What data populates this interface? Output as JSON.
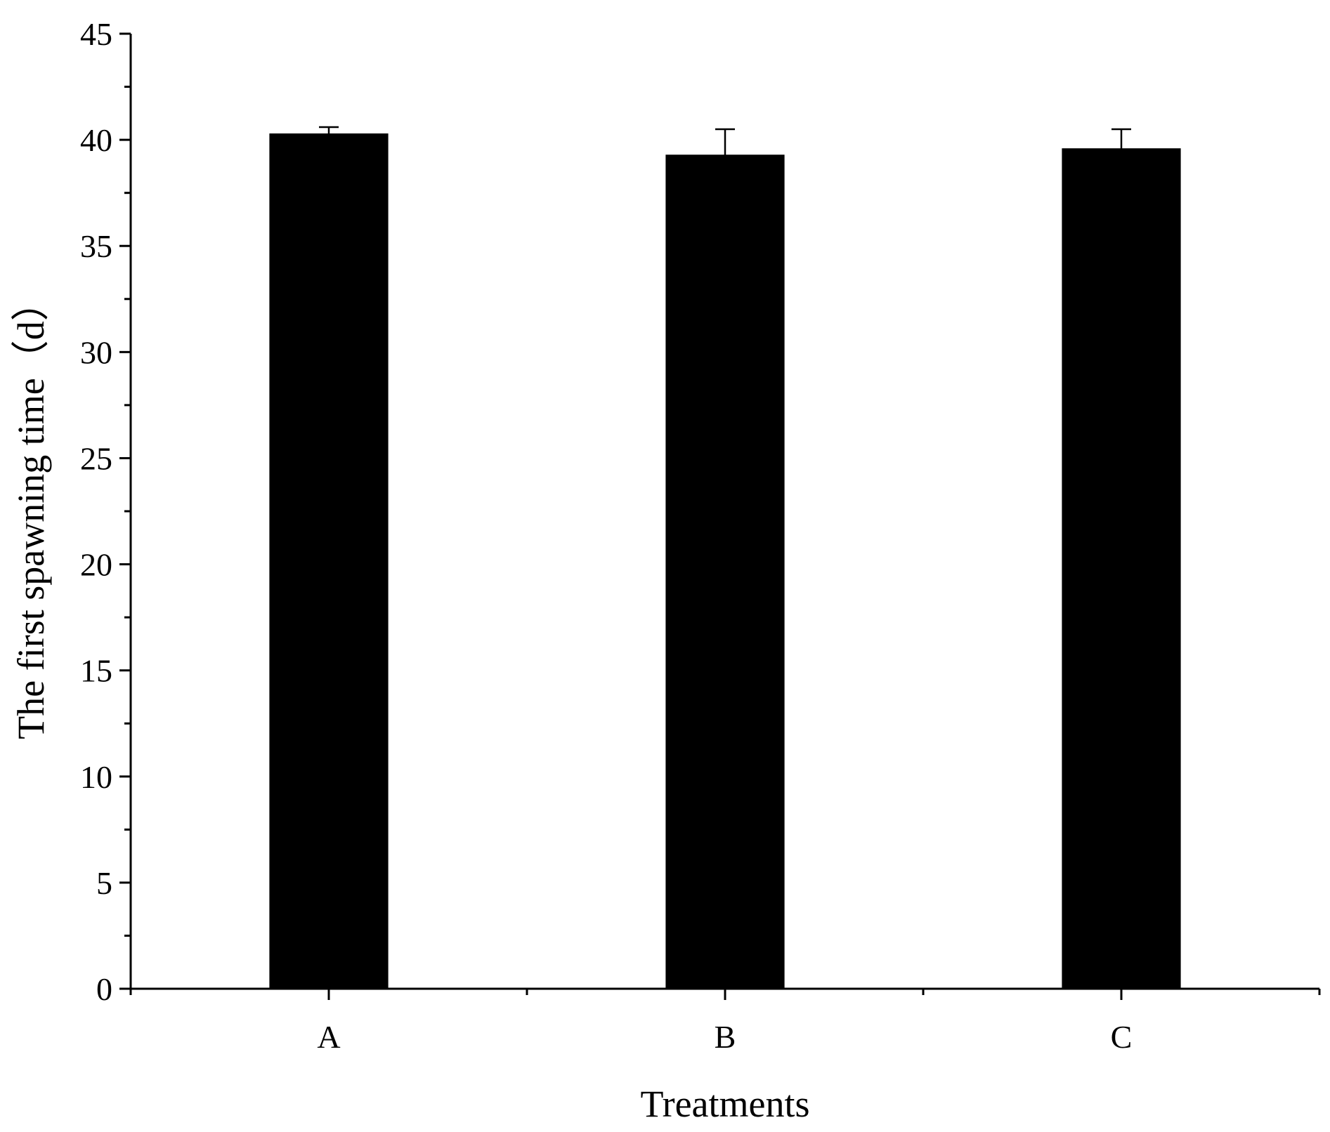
{
  "chart_data": {
    "type": "bar",
    "title": "",
    "xlabel": "Treatments",
    "ylabel": "The first spawning time（d）",
    "categories": [
      "A",
      "B",
      "C"
    ],
    "values": [
      40.3,
      39.3,
      39.6
    ],
    "error_upper": [
      0.3,
      1.2,
      0.9
    ],
    "ylim": [
      0,
      45
    ],
    "yticks": [
      0,
      5,
      10,
      15,
      20,
      25,
      30,
      35,
      40,
      45
    ],
    "yminor_step": 2.5,
    "grid": false,
    "legend": "none",
    "bar_color": "#000000"
  }
}
